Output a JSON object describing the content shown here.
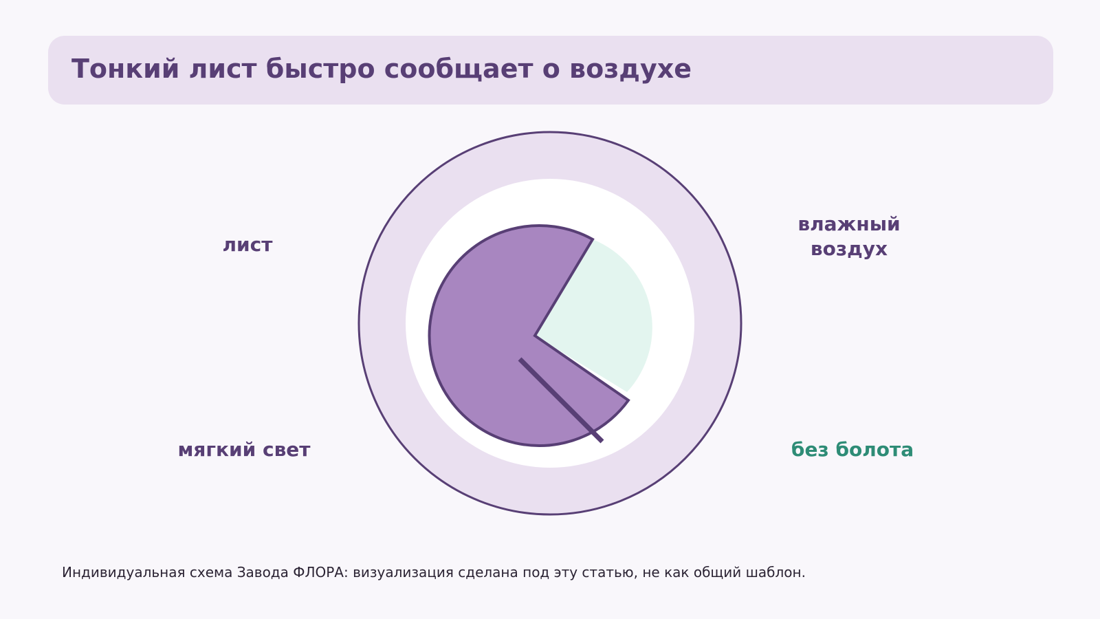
{
  "title": "Тонкий лист быстро сообщает о воздухе",
  "labels": {
    "leaf": "лист",
    "humid_air_line1": "влажный",
    "humid_air_line2": "воздух",
    "soft_light": "мягкий свет",
    "no_swamp": "без болота"
  },
  "caption": "Индивидуальная схема Завода ФЛОРА: визуализация сделана под эту статью, не как общий шаблон.",
  "colors": {
    "background": "#f9f7fb",
    "band": "#eae0f0",
    "primary": "#583f75",
    "leaf_fill": "#a886c0",
    "mint": "#e3f5ef",
    "green_text": "#2e8c76"
  }
}
